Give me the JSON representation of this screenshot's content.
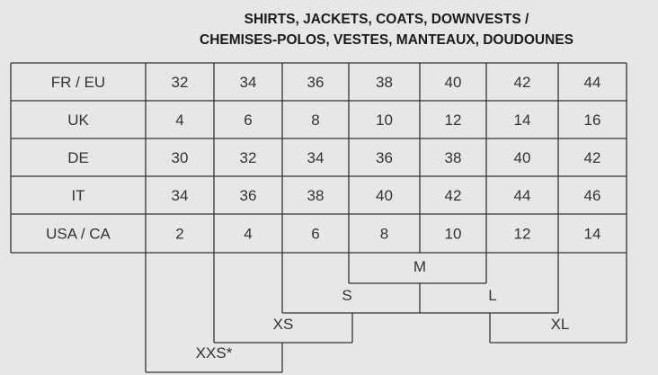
{
  "title": {
    "line1": "SHIRTS, JACKETS, COATS, DOWNVESTS /",
    "line2": "CHEMISES-POLOS, VESTES, MANTEAUX, DOUDOUNES"
  },
  "table": {
    "rows": [
      {
        "label": "FR / EU",
        "values": [
          "32",
          "34",
          "36",
          "38",
          "40",
          "42",
          "44"
        ]
      },
      {
        "label": "UK",
        "values": [
          "4",
          "6",
          "8",
          "10",
          "12",
          "14",
          "16"
        ]
      },
      {
        "label": "DE",
        "values": [
          "30",
          "32",
          "34",
          "36",
          "38",
          "40",
          "42"
        ]
      },
      {
        "label": "IT",
        "values": [
          "34",
          "36",
          "38",
          "40",
          "42",
          "44",
          "46"
        ]
      },
      {
        "label": "USA / CA",
        "values": [
          "2",
          "4",
          "6",
          "8",
          "10",
          "12",
          "14"
        ]
      }
    ]
  },
  "sizes": {
    "xxs": "XXS*",
    "xs": "XS",
    "s": "S",
    "m": "M",
    "l": "L",
    "xl": "XL"
  },
  "colors": {
    "background": "#e7e7e7",
    "line": "#333333"
  }
}
